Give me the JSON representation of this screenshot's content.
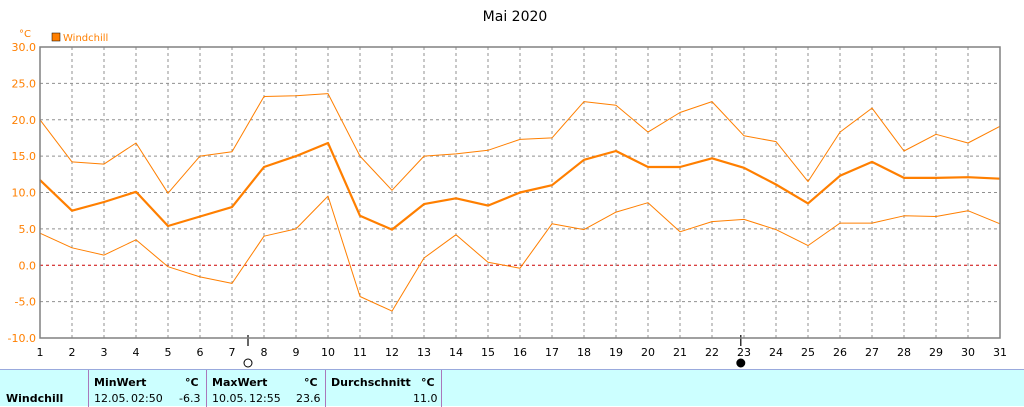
{
  "chart_data": {
    "type": "line",
    "title": "Mai 2020",
    "unit": "°C",
    "ylim": [
      -10,
      30
    ],
    "yticks": [
      "30.0",
      "25.0",
      "20.0",
      "15.0",
      "10.0",
      "5.0",
      "0.0",
      "-5.0",
      "-10.0"
    ],
    "x": [
      1,
      2,
      3,
      4,
      5,
      6,
      7,
      8,
      9,
      10,
      11,
      12,
      13,
      14,
      15,
      16,
      17,
      18,
      19,
      20,
      21,
      22,
      23,
      24,
      25,
      26,
      27,
      28,
      29,
      30,
      31
    ],
    "series": [
      {
        "name": "Windchill",
        "role": "avg",
        "color": "#ff7f00",
        "values": [
          11.7,
          7.5,
          8.7,
          10.1,
          5.4,
          6.7,
          8.0,
          13.5,
          15.0,
          16.8,
          6.8,
          4.9,
          8.4,
          9.2,
          8.2,
          10.0,
          11.0,
          14.5,
          15.7,
          13.5,
          13.5,
          14.7,
          13.4,
          11.1,
          8.5,
          12.3,
          14.2,
          12.0,
          12.0,
          12.1,
          11.9
        ]
      },
      {
        "role": "max",
        "color": "#ff7f00",
        "values": [
          20.0,
          14.2,
          13.9,
          16.8,
          9.9,
          15.0,
          15.6,
          23.2,
          23.3,
          23.6,
          15.0,
          10.3,
          15.0,
          15.3,
          15.8,
          17.3,
          17.5,
          22.5,
          22.0,
          18.3,
          21.0,
          22.5,
          17.8,
          17.0,
          11.5,
          18.3,
          21.6,
          15.7,
          18.0,
          16.8,
          19.1
        ]
      },
      {
        "role": "min",
        "color": "#ff7f00",
        "values": [
          4.4,
          2.4,
          1.4,
          3.5,
          -0.2,
          -1.6,
          -2.5,
          4.0,
          5.0,
          9.5,
          -4.3,
          -6.3,
          1.0,
          4.2,
          0.4,
          -0.4,
          5.7,
          4.9,
          7.3,
          8.6,
          4.6,
          6.0,
          6.3,
          4.9,
          2.7,
          5.8,
          5.8,
          6.8,
          6.7,
          7.5,
          5.7
        ]
      }
    ],
    "grid": true,
    "legend_position": "top-left",
    "moon_markers": [
      {
        "day": 7.5,
        "phase": "full-moon"
      },
      {
        "day": 22.9,
        "phase": "new-moon"
      }
    ]
  },
  "stats": {
    "label": "Windchill",
    "min_header": "MinWert",
    "max_header": "MaxWert",
    "avg_header": "Durchschnitt",
    "unit": "°C",
    "min_date": "12.05.",
    "min_time": "02:50",
    "min_value": "-6.3",
    "max_date": "10.05.",
    "max_time": "12:55",
    "max_value": "23.6",
    "avg_value": "11.0"
  }
}
